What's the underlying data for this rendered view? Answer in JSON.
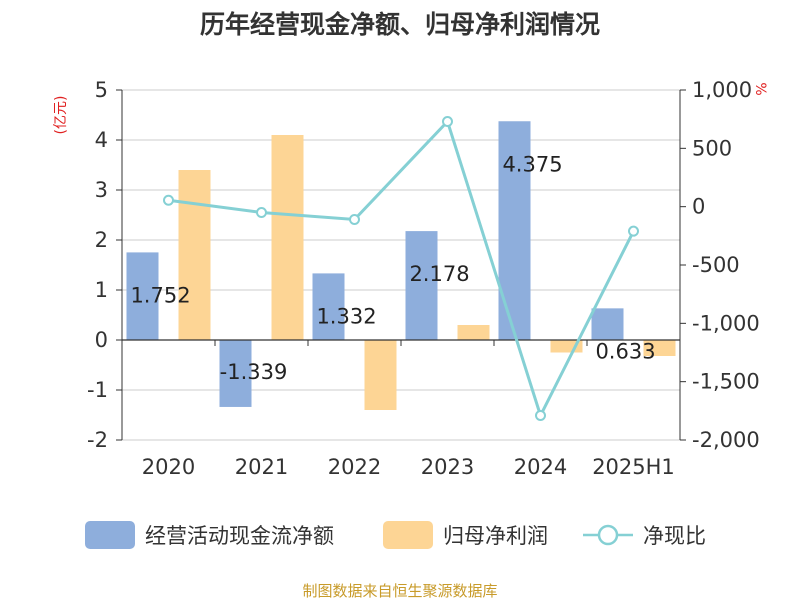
{
  "chart_data": {
    "type": "bar",
    "title": "历年经营现金净额、归母净利润情况",
    "categories": [
      "2020",
      "2021",
      "2022",
      "2023",
      "2024",
      "2025H1"
    ],
    "series": [
      {
        "name": "经营活动现金流净额",
        "kind": "bar",
        "axis": "left",
        "values": [
          1.752,
          -1.339,
          1.332,
          2.178,
          4.375,
          0.633
        ]
      },
      {
        "name": "归母净利润",
        "kind": "bar",
        "axis": "left",
        "values": [
          3.4,
          4.1,
          -1.4,
          0.3,
          -0.25,
          -0.32
        ]
      },
      {
        "name": "净现比",
        "kind": "line",
        "axis": "right",
        "values": [
          55,
          -50,
          -110,
          730,
          -1790,
          -210
        ]
      }
    ],
    "data_labels": [
      "1.752",
      "-1.339",
      "1.332",
      "2.178",
      "4.375",
      "0.633"
    ],
    "y_left": {
      "unit": "(亿元)",
      "ylim": [
        -2,
        5
      ],
      "ticks": [
        "5",
        "4",
        "3",
        "2",
        "1",
        "0",
        "-1",
        "-2"
      ]
    },
    "y_right": {
      "unit": "%",
      "ylim": [
        -2000,
        1000
      ],
      "ticks": [
        "1,000",
        "500",
        "0",
        "-500",
        "-1,000",
        "-1,500",
        "-2,000"
      ]
    },
    "grid": true,
    "legend_position": "bottom"
  },
  "colors": {
    "bar1": "#8eaedc",
    "bar2": "#fdd595",
    "line": "#85d0d4",
    "grid": "#cccccc",
    "axis": "#333333"
  },
  "source_text": "制图数据来自恒生聚源数据库"
}
